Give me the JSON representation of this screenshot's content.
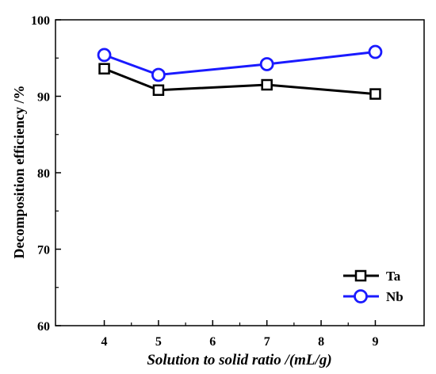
{
  "chart_data": {
    "type": "line",
    "xlabel": "Solution to solid ratio /(mL/g)",
    "ylabel": "Decomposition efficiency /%",
    "xlim": [
      3.1,
      9.9
    ],
    "ylim": [
      60,
      100
    ],
    "xticks": [
      4,
      5,
      6,
      7,
      8,
      9
    ],
    "yticks": [
      60,
      70,
      80,
      90,
      100
    ],
    "grid": false,
    "legend_position": "bottom-right",
    "series": [
      {
        "name": "Ta",
        "marker": "square",
        "color": "#000000",
        "x": [
          4,
          5,
          7,
          9
        ],
        "y": [
          93.6,
          90.8,
          91.5,
          90.3
        ]
      },
      {
        "name": "Nb",
        "marker": "circle",
        "color": "#1a1aff",
        "x": [
          4,
          5,
          7,
          9
        ],
        "y": [
          95.4,
          92.8,
          94.2,
          95.8
        ]
      }
    ]
  }
}
